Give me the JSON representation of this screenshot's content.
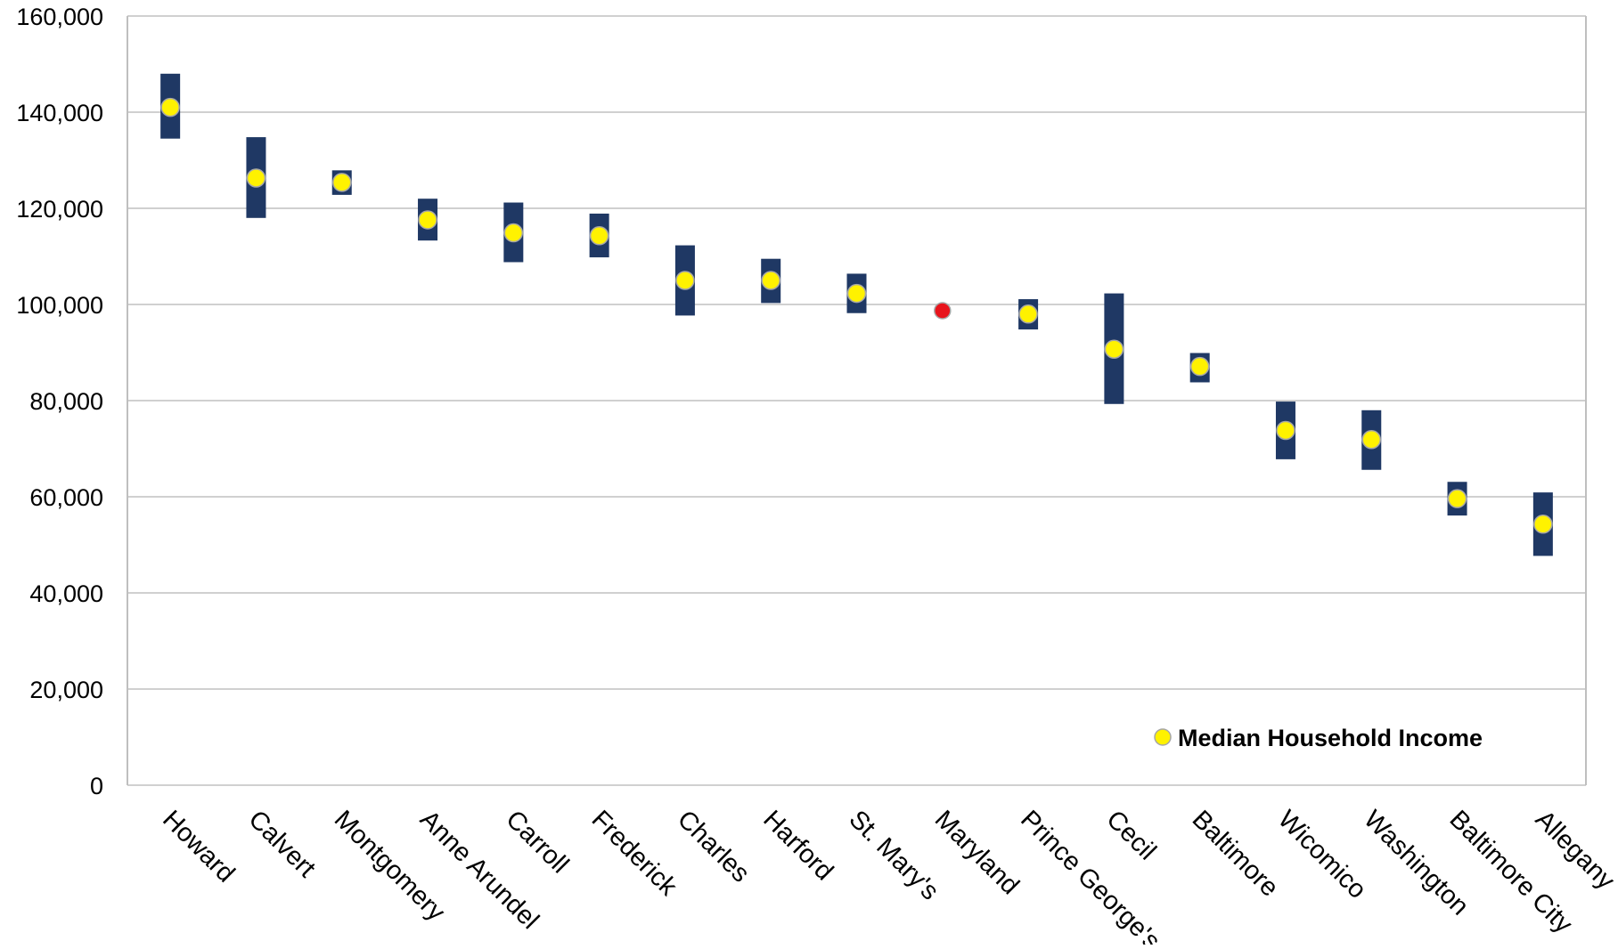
{
  "chart_data": {
    "type": "scatter",
    "title": "",
    "xlabel": "",
    "ylabel": "",
    "ylim": [
      0,
      160000
    ],
    "y_ticks": [
      0,
      20000,
      40000,
      60000,
      80000,
      100000,
      120000,
      140000,
      160000
    ],
    "y_tick_labels": [
      "0",
      "20,000",
      "40,000",
      "60,000",
      "80,000",
      "100,000",
      "120,000",
      "140,000",
      "160,000"
    ],
    "grid": true,
    "legend_position": "bottom-right",
    "categories": [
      "Howard",
      "Calvert",
      "Montgomery",
      "Anne Arundel",
      "Carroll",
      "Frederick",
      "Charles",
      "Harford",
      "St. Mary's",
      "Maryland",
      "Prince George's",
      "Cecil",
      "Baltimore",
      "Wicomico",
      "Washington",
      "Baltimore City",
      "Allegany"
    ],
    "series": [
      {
        "name": "Median Household Income",
        "values": [
          141000,
          126300,
          125400,
          117600,
          114900,
          114300,
          105000,
          105000,
          102300,
          98700,
          98000,
          90700,
          87100,
          73800,
          71900,
          59600,
          54300
        ]
      }
    ],
    "ranges": {
      "low": [
        134500,
        118000,
        122800,
        113300,
        108800,
        109800,
        97700,
        100300,
        98200,
        null,
        94800,
        79300,
        83800,
        67800,
        65600,
        56100,
        47700
      ],
      "high": [
        148000,
        134800,
        127900,
        122000,
        121200,
        118900,
        112300,
        109500,
        106400,
        null,
        101100,
        102300,
        89900,
        79800,
        78000,
        63100,
        60900
      ]
    },
    "marker_colors": {
      "default": "#FFF200",
      "highlight": "#E8141C",
      "highlight_category": "Maryland",
      "range_bar": "#1F3864",
      "grid": "#D0D0D0",
      "axis": "#BFBFBF"
    }
  }
}
